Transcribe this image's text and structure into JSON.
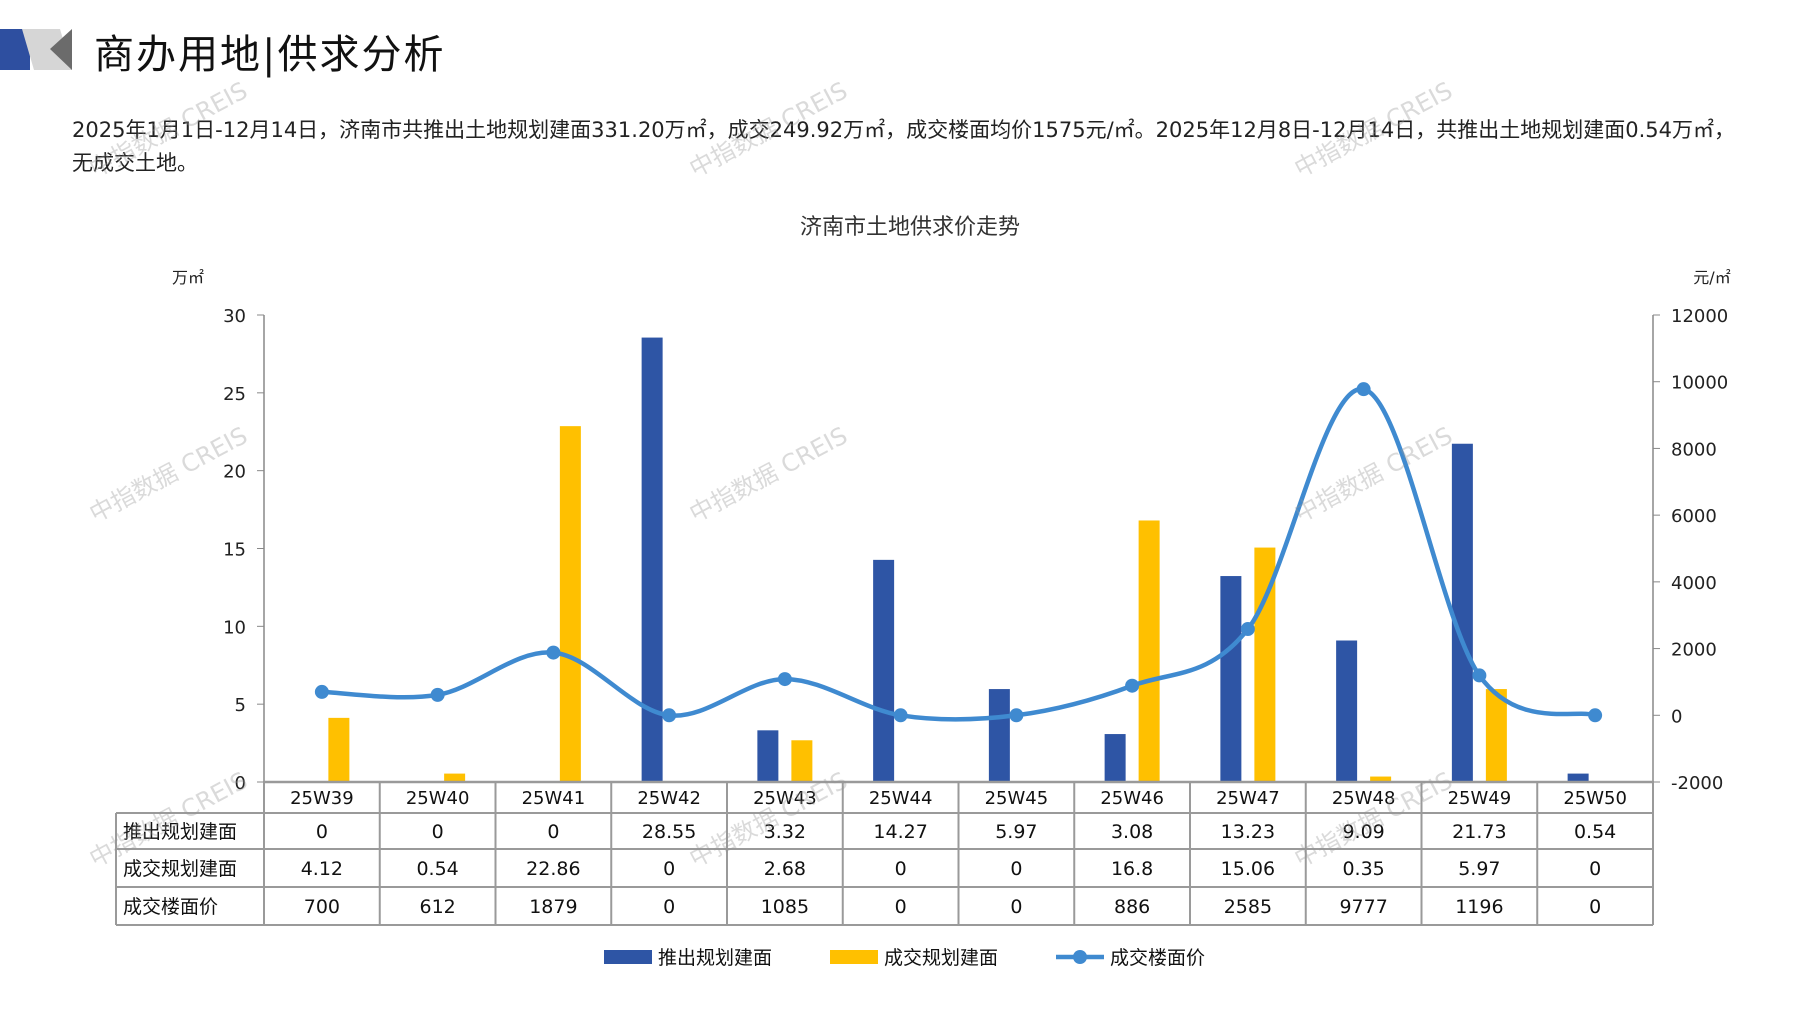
{
  "header": {
    "title": "商办用地|供求分析",
    "summary": "2025年1月1日-12月14日，济南市共推出土地规划建面331.20万㎡，成交249.92万㎡，成交楼面均价1575元/㎡。2025年12月8日-12月14日，共推出土地规划建面0.54万㎡，无成交土地。"
  },
  "watermark": "中指数据 CREIS",
  "chart_data": {
    "type": "bar+line",
    "title": "济南市土地供求价走势",
    "left_unit": "万㎡",
    "right_unit": "元/㎡",
    "left_axis": {
      "range": [
        0,
        30
      ],
      "ticks": [
        "0",
        "5",
        "10",
        "15",
        "20",
        "25",
        "30"
      ]
    },
    "right_axis": {
      "range": [
        -2000,
        12000
      ],
      "ticks": [
        "-2000",
        "0",
        "2000",
        "4000",
        "6000",
        "8000",
        "10000",
        "12000"
      ]
    },
    "categories": [
      "25W39",
      "25W40",
      "25W41",
      "25W42",
      "25W43",
      "25W44",
      "25W45",
      "25W46",
      "25W47",
      "25W48",
      "25W49",
      "25W50"
    ],
    "series": [
      {
        "name": "推出规划建面",
        "type": "bar",
        "axis": "left",
        "color": "#2E55A5",
        "values": [
          0,
          0,
          0,
          28.55,
          3.32,
          14.27,
          5.97,
          3.08,
          13.23,
          9.09,
          21.73,
          0.54
        ],
        "labels": [
          "0",
          "0",
          "0",
          "28.55",
          "3.32",
          "14.27",
          "5.97",
          "3.08",
          "13.23",
          "9.09",
          "21.73",
          "0.54"
        ]
      },
      {
        "name": "成交规划建面",
        "type": "bar",
        "axis": "left",
        "color": "#FFC000",
        "values": [
          4.12,
          0.54,
          22.86,
          0,
          2.68,
          0,
          0,
          16.8,
          15.06,
          0.35,
          5.97,
          0
        ],
        "labels": [
          "4.12",
          "0.54",
          "22.86",
          "0",
          "2.68",
          "0",
          "0",
          "16.8",
          "15.06",
          "0.35",
          "5.97",
          "0"
        ]
      },
      {
        "name": "成交楼面价",
        "type": "line",
        "axis": "right",
        "color": "#3F8AD0",
        "smooth": true,
        "values": [
          700,
          612,
          1879,
          0,
          1085,
          0,
          0,
          886,
          2585,
          9777,
          1196,
          0
        ],
        "labels": [
          "700",
          "612",
          "1879",
          "0",
          "1085",
          "0",
          "0",
          "886",
          "2585",
          "9777",
          "1196",
          "0"
        ]
      }
    ],
    "data_table": true,
    "legend": "bottom",
    "grid": false
  }
}
